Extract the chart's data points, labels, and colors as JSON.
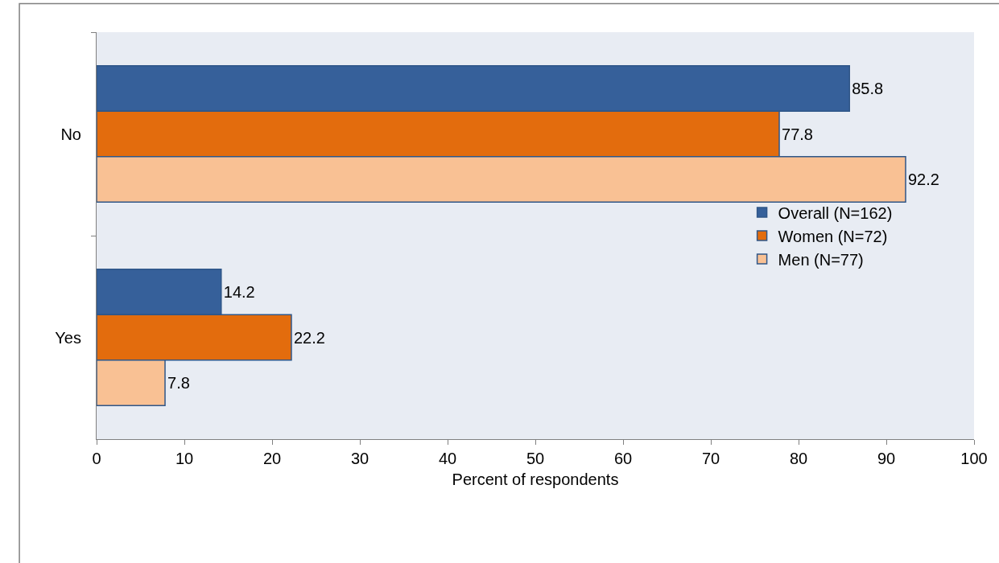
{
  "chart_data": {
    "type": "bar",
    "orientation": "horizontal",
    "xlabel": "Percent of respondents",
    "categories": [
      "No",
      "Yes"
    ],
    "series": [
      {
        "name": "Overall (N=162)",
        "color": "#36609a",
        "values": [
          85.8,
          14.2
        ]
      },
      {
        "name": "Women (N=72)",
        "color": "#e36c0d",
        "values": [
          77.8,
          22.2
        ]
      },
      {
        "name": "Men (N=77)",
        "color": "#f9c194",
        "values": [
          92.2,
          7.8
        ]
      }
    ],
    "xlim": [
      0,
      100
    ],
    "xticks": [
      0,
      10,
      20,
      30,
      40,
      50,
      60,
      70,
      80,
      90,
      100
    ],
    "data_labels": true,
    "grid": false,
    "legend": "right"
  }
}
